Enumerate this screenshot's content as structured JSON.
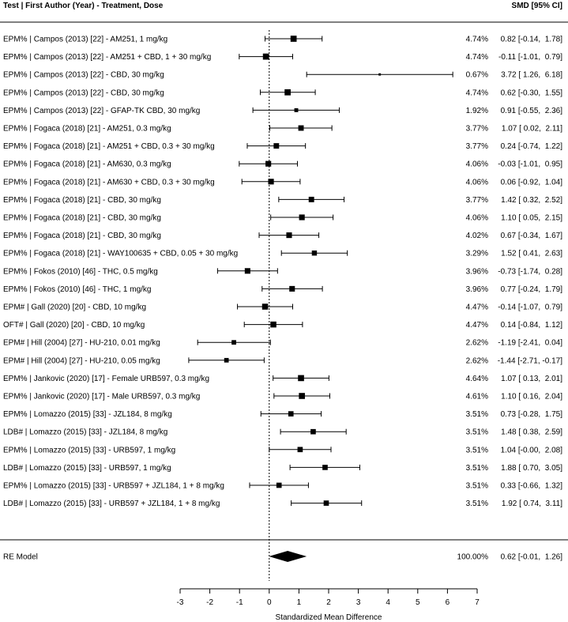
{
  "chart_data": {
    "type": "forest",
    "header_left": "Test | First Author (Year) - Treatment, Dose",
    "header_right": "SMD [95% CI]",
    "xlabel": "Standardized Mean Difference",
    "xlim": [
      -3,
      7
    ],
    "xticks": [
      -3,
      -2,
      -1,
      0,
      1,
      2,
      3,
      4,
      5,
      6,
      7
    ],
    "reference_line": 0,
    "studies": [
      {
        "label": "EPM% | Campos (2013) [22] - AM251, 1 mg/kg",
        "weight": "4.74%",
        "smd": 0.82,
        "lower": -0.14,
        "upper": 1.78,
        "ci_text": "0.82 [-0.14,  1.78]"
      },
      {
        "label": "EPM% | Campos (2013) [22] - AM251 + CBD, 1 + 30 mg/kg",
        "weight": "4.74%",
        "smd": -0.11,
        "lower": -1.01,
        "upper": 0.79,
        "ci_text": "-0.11 [-1.01,  0.79]"
      },
      {
        "label": "EPM% | Campos (2013) [22] - CBD, 30 mg/kg",
        "weight": "0.67%",
        "smd": 3.72,
        "lower": 1.26,
        "upper": 6.18,
        "ci_text": "3.72 [ 1.26,  6.18]"
      },
      {
        "label": "EPM% | Campos (2013) [22] - CBD, 30 mg/kg",
        "weight": "4.74%",
        "smd": 0.62,
        "lower": -0.3,
        "upper": 1.55,
        "ci_text": "0.62 [-0.30,  1.55]"
      },
      {
        "label": "EPM% | Campos (2013) [22] - GFAP-TK CBD, 30 mg/kg",
        "weight": "1.92%",
        "smd": 0.91,
        "lower": -0.55,
        "upper": 2.36,
        "ci_text": "0.91 [-0.55,  2.36]"
      },
      {
        "label": "EPM% | Fogaca (2018) [21] - AM251, 0.3 mg/kg",
        "weight": "3.77%",
        "smd": 1.07,
        "lower": 0.02,
        "upper": 2.11,
        "ci_text": "1.07 [ 0.02,  2.11]"
      },
      {
        "label": "EPM% | Fogaca (2018) [21] - AM251 + CBD, 0.3 + 30 mg/kg",
        "weight": "3.77%",
        "smd": 0.24,
        "lower": -0.74,
        "upper": 1.22,
        "ci_text": "0.24 [-0.74,  1.22]"
      },
      {
        "label": "EPM% | Fogaca (2018) [21] - AM630, 0.3 mg/kg",
        "weight": "4.06%",
        "smd": -0.03,
        "lower": -1.01,
        "upper": 0.95,
        "ci_text": "-0.03 [-1.01,  0.95]"
      },
      {
        "label": "EPM% | Fogaca (2018) [21] - AM630 + CBD, 0.3 + 30 mg/kg",
        "weight": "4.06%",
        "smd": 0.06,
        "lower": -0.92,
        "upper": 1.04,
        "ci_text": "0.06 [-0.92,  1.04]"
      },
      {
        "label": "EPM% | Fogaca (2018) [21] - CBD, 30 mg/kg",
        "weight": "3.77%",
        "smd": 1.42,
        "lower": 0.32,
        "upper": 2.52,
        "ci_text": "1.42 [ 0.32,  2.52]"
      },
      {
        "label": "EPM% | Fogaca (2018) [21] - CBD, 30 mg/kg",
        "weight": "4.06%",
        "smd": 1.1,
        "lower": 0.05,
        "upper": 2.15,
        "ci_text": "1.10 [ 0.05,  2.15]"
      },
      {
        "label": "EPM% | Fogaca (2018) [21] - CBD, 30 mg/kg",
        "weight": "4.02%",
        "smd": 0.67,
        "lower": -0.34,
        "upper": 1.67,
        "ci_text": "0.67 [-0.34,  1.67]"
      },
      {
        "label": "EPM% | Fogaca (2018) [21] - WAY100635 + CBD, 0.05 + 30 mg/kg",
        "weight": "3.29%",
        "smd": 1.52,
        "lower": 0.41,
        "upper": 2.63,
        "ci_text": "1.52 [ 0.41,  2.63]"
      },
      {
        "label": "EPM% | Fokos (2010) [46] - THC, 0.5 mg/kg",
        "weight": "3.96%",
        "smd": -0.73,
        "lower": -1.74,
        "upper": 0.28,
        "ci_text": "-0.73 [-1.74,  0.28]"
      },
      {
        "label": "EPM% | Fokos (2010) [46] - THC, 1 mg/kg",
        "weight": "3.96%",
        "smd": 0.77,
        "lower": -0.24,
        "upper": 1.79,
        "ci_text": "0.77 [-0.24,  1.79]"
      },
      {
        "label": "EPM# | Gall (2020) [20] - CBD, 10 mg/kg",
        "weight": "4.47%",
        "smd": -0.14,
        "lower": -1.07,
        "upper": 0.79,
        "ci_text": "-0.14 [-1.07,  0.79]"
      },
      {
        "label": "OFT# | Gall (2020) [20] - CBD, 10 mg/kg",
        "weight": "4.47%",
        "smd": 0.14,
        "lower": -0.84,
        "upper": 1.12,
        "ci_text": "0.14 [-0.84,  1.12]"
      },
      {
        "label": "EPM# | Hill (2004) [27] - HU-210, 0.01 mg/kg",
        "weight": "2.62%",
        "smd": -1.19,
        "lower": -2.41,
        "upper": 0.04,
        "ci_text": "-1.19 [-2.41,  0.04]"
      },
      {
        "label": "EPM# | Hill (2004) [27] - HU-210, 0.05 mg/kg",
        "weight": "2.62%",
        "smd": -1.44,
        "lower": -2.71,
        "upper": -0.17,
        "ci_text": "-1.44 [-2.71, -0.17]"
      },
      {
        "label": "EPM% | Jankovic (2020) [17] - Female URB597, 0.3 mg/kg",
        "weight": "4.64%",
        "smd": 1.07,
        "lower": 0.13,
        "upper": 2.01,
        "ci_text": "1.07 [ 0.13,  2.01]"
      },
      {
        "label": "EPM% | Jankovic (2020) [17] - Male URB597, 0.3 mg/kg",
        "weight": "4.61%",
        "smd": 1.1,
        "lower": 0.16,
        "upper": 2.04,
        "ci_text": "1.10 [ 0.16,  2.04]"
      },
      {
        "label": "EPM% | Lomazzo (2015) [33] - JZL184, 8 mg/kg",
        "weight": "3.51%",
        "smd": 0.73,
        "lower": -0.28,
        "upper": 1.75,
        "ci_text": "0.73 [-0.28,  1.75]"
      },
      {
        "label": "LDB# | Lomazzo (2015) [33] - JZL184, 8 mg/kg",
        "weight": "3.51%",
        "smd": 1.48,
        "lower": 0.38,
        "upper": 2.59,
        "ci_text": "1.48 [ 0.38,  2.59]"
      },
      {
        "label": "EPM% | Lomazzo (2015) [33] - URB597, 1 mg/kg",
        "weight": "3.51%",
        "smd": 1.04,
        "lower": -0.0,
        "upper": 2.08,
        "ci_text": "1.04 [-0.00,  2.08]"
      },
      {
        "label": "LDB# | Lomazzo (2015) [33] - URB597, 1 mg/kg",
        "weight": "3.51%",
        "smd": 1.88,
        "lower": 0.7,
        "upper": 3.05,
        "ci_text": "1.88 [ 0.70,  3.05]"
      },
      {
        "label": "EPM% | Lomazzo (2015) [33] - URB597 + JZL184, 1 + 8 mg/kg",
        "weight": "3.51%",
        "smd": 0.33,
        "lower": -0.66,
        "upper": 1.32,
        "ci_text": "0.33 [-0.66,  1.32]"
      },
      {
        "label": "LDB# | Lomazzo (2015) [33] - URB597 + JZL184, 1 + 8 mg/kg",
        "weight": "3.51%",
        "smd": 1.92,
        "lower": 0.74,
        "upper": 3.11,
        "ci_text": "1.92 [ 0.74,  3.11]"
      }
    ],
    "summary": {
      "label": "RE Model",
      "weight": "100.00%",
      "smd": 0.62,
      "lower": -0.01,
      "upper": 1.26,
      "ci_text": "0.62 [-0.01,  1.26]"
    }
  }
}
